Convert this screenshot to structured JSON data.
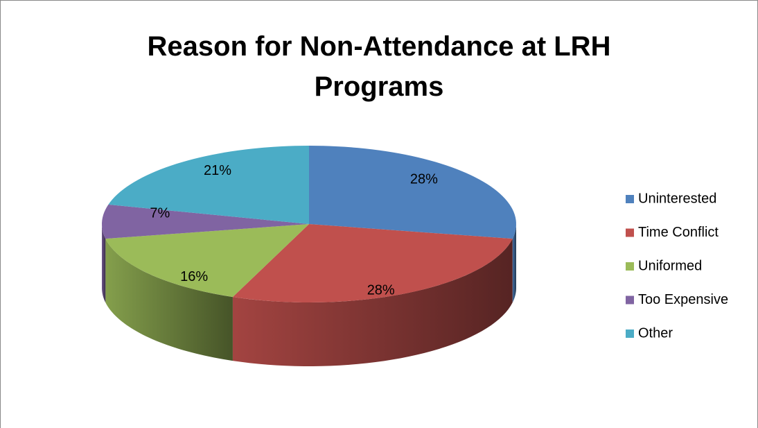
{
  "chart_data": {
    "type": "pie",
    "title": "Reason for Non-Attendance at LRH Programs",
    "categories": [
      "Uninterested",
      "Time Conflict",
      "Uniformed",
      "Too Expensive",
      "Other"
    ],
    "values": [
      28,
      28,
      16,
      7,
      21
    ],
    "value_labels": [
      "28%",
      "28%",
      "16%",
      "7%",
      "21%"
    ],
    "colors": [
      "#4f81bd",
      "#c0504d",
      "#9bbb59",
      "#8064a2",
      "#4bacc6"
    ],
    "legend": "right"
  }
}
